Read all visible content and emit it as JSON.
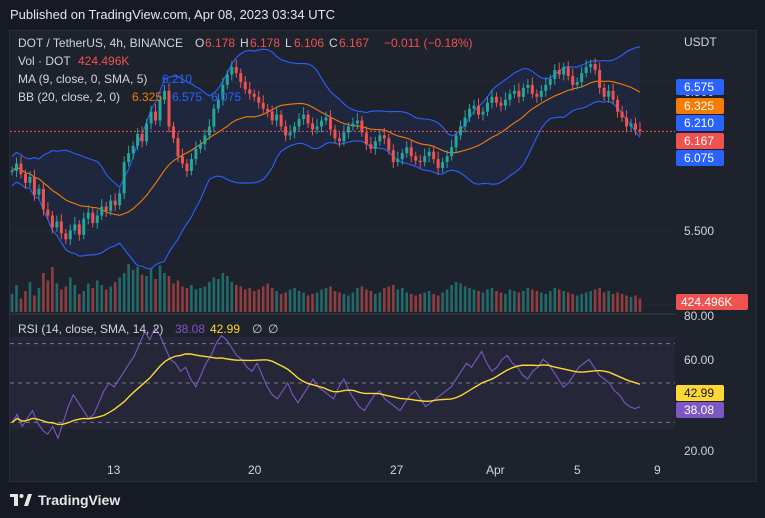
{
  "header": {
    "published": "Published on TradingView.com, Apr 08, 2023 03:34 UTC"
  },
  "legend": {
    "symbol": "DOT / TetherUS, 4h, BINANCE",
    "o_label": "O",
    "o_val": "6.178",
    "h_label": "H",
    "h_val": "6.178",
    "l_label": "L",
    "l_val": "6.106",
    "c_label": "C",
    "c_val": "6.167",
    "change": "−0.011 (−0.18%)",
    "vol_label": "Vol · DOT",
    "vol_val": "424.496K",
    "ma_label": "MA (9, close, 0, SMA, 5)",
    "ma_val": "6.210",
    "bb_label": "BB (20, close, 2, 0)",
    "bb_basis": "6.325",
    "bb_upper": "6.575",
    "bb_lower": "6.075",
    "rsi_label": "RSI (14, close, SMA, 14, 2)",
    "rsi_val": "38.08",
    "rsi_ma_val": "42.99",
    "null_1": "∅",
    "null_2": "∅"
  },
  "price_axis": {
    "currency": "USDT",
    "tick_partial_top": "6.500",
    "tick_mid": "5.500",
    "tick_partial_bottom": "5.000",
    "tag_upper": "6.575",
    "tag_basis": "6.325",
    "tag_ma": "6.210",
    "tag_close": "6.167",
    "tag_lower": "6.075",
    "tag_volume": "424.496K"
  },
  "rsi_axis": {
    "ticks": [
      "80.00",
      "60.00",
      "20.00"
    ],
    "tag_ma": "42.99",
    "tag_rsi": "38.08"
  },
  "time_axis": {
    "labels": [
      "13",
      "20",
      "27",
      "Apr",
      "5",
      "9"
    ]
  },
  "footer": {
    "brand": "TradingView"
  },
  "colors": {
    "up": "#26a69a",
    "down": "#ef5350",
    "bb_band": "#2962ff",
    "bb_basis": "#f57c00",
    "rsi": "#7e57c2",
    "rsi_ma": "#fdd835",
    "close_line": "#ef5350"
  },
  "chart_data": {
    "type": "candlestick",
    "symbol": "DOT/USDT",
    "timeframe": "4h",
    "last_close": 6.167,
    "ohlc_last": {
      "open": 6.178,
      "high": 6.178,
      "low": 6.106,
      "close": 6.167
    },
    "x_labels": [
      "13",
      "20",
      "27",
      "Apr",
      "5",
      "9"
    ],
    "close_series": [
      5.9,
      5.95,
      5.88,
      5.82,
      5.86,
      5.74,
      5.78,
      5.64,
      5.6,
      5.52,
      5.56,
      5.48,
      5.44,
      5.5,
      5.54,
      5.47,
      5.58,
      5.62,
      5.55,
      5.6,
      5.66,
      5.63,
      5.7,
      5.67,
      5.75,
      5.96,
      6.02,
      6.07,
      6.15,
      6.1,
      6.22,
      6.3,
      6.24,
      6.38,
      6.44,
      6.2,
      6.12,
      6.0,
      5.95,
      5.9,
      5.98,
      6.05,
      6.08,
      6.14,
      6.2,
      6.32,
      6.38,
      6.48,
      6.55,
      6.6,
      6.56,
      6.5,
      6.45,
      6.42,
      6.4,
      6.36,
      6.32,
      6.3,
      6.24,
      6.28,
      6.2,
      6.14,
      6.16,
      6.2,
      6.25,
      6.28,
      6.22,
      6.18,
      6.2,
      6.24,
      6.26,
      6.18,
      6.12,
      6.1,
      6.16,
      6.2,
      6.22,
      6.24,
      6.16,
      6.08,
      6.05,
      6.1,
      6.14,
      6.12,
      6.04,
      5.96,
      5.98,
      6.02,
      6.06,
      6.0,
      5.97,
      5.96,
      6.0,
      6.03,
      5.98,
      5.92,
      5.96,
      6.0,
      6.06,
      6.14,
      6.2,
      6.26,
      6.32,
      6.34,
      6.28,
      6.3,
      6.36,
      6.4,
      6.36,
      6.34,
      6.38,
      6.42,
      6.44,
      6.4,
      6.46,
      6.48,
      6.42,
      6.4,
      6.44,
      6.48,
      6.52,
      6.58,
      6.55,
      6.6,
      6.54,
      6.48,
      6.5,
      6.56,
      6.6,
      6.62,
      6.58,
      6.46,
      6.4,
      6.44,
      6.38,
      6.3,
      6.26,
      6.2,
      6.22,
      6.18,
      6.17
    ],
    "volume_series": [
      120,
      180,
      90,
      140,
      200,
      110,
      160,
      260,
      210,
      300,
      190,
      150,
      170,
      230,
      180,
      120,
      140,
      190,
      160,
      210,
      180,
      150,
      170,
      200,
      230,
      260,
      320,
      280,
      300,
      250,
      240,
      290,
      220,
      310,
      260,
      240,
      190,
      210,
      170,
      160,
      180,
      150,
      160,
      170,
      200,
      230,
      220,
      260,
      240,
      200,
      180,
      170,
      150,
      160,
      140,
      150,
      170,
      190,
      160,
      140,
      120,
      130,
      150,
      160,
      140,
      130,
      110,
      120,
      130,
      150,
      160,
      170,
      140,
      130,
      120,
      110,
      130,
      160,
      170,
      150,
      140,
      120,
      130,
      160,
      170,
      180,
      150,
      160,
      130,
      120,
      110,
      120,
      130,
      140,
      120,
      110,
      130,
      150,
      180,
      200,
      190,
      170,
      160,
      150,
      140,
      130,
      150,
      160,
      140,
      130,
      120,
      150,
      140,
      130,
      140,
      160,
      150,
      140,
      130,
      120,
      140,
      160,
      150,
      140,
      130,
      120,
      110,
      120,
      130,
      140,
      150,
      160,
      130,
      140,
      120,
      130,
      120,
      110,
      100,
      110,
      90
    ],
    "rsi_series": [
      30,
      34,
      28,
      32,
      36,
      30,
      26,
      24,
      28,
      22,
      30,
      38,
      44,
      40,
      36,
      32,
      34,
      40,
      46,
      50,
      48,
      52,
      56,
      60,
      64,
      70,
      76,
      72,
      78,
      74,
      68,
      62,
      60,
      56,
      58,
      52,
      48,
      54,
      60,
      64,
      70,
      74,
      72,
      68,
      64,
      62,
      58,
      56,
      60,
      54,
      48,
      44,
      42,
      46,
      50,
      44,
      40,
      44,
      48,
      52,
      48,
      46,
      44,
      42,
      48,
      52,
      46,
      42,
      38,
      36,
      40,
      44,
      46,
      42,
      40,
      38,
      36,
      40,
      44,
      46,
      42,
      38,
      40,
      42,
      44,
      46,
      48,
      52,
      56,
      60,
      58,
      62,
      66,
      60,
      56,
      58,
      62,
      64,
      60,
      58,
      54,
      52,
      56,
      58,
      62,
      60,
      56,
      52,
      48,
      50,
      54,
      58,
      60,
      62,
      58,
      54,
      52,
      50,
      46,
      44,
      40,
      38,
      37,
      38
    ],
    "price_ticks_visible": [
      6.5,
      5.5,
      5.0
    ],
    "price_range": [
      4.95,
      6.85
    ],
    "rsi_range": [
      15,
      85
    ],
    "rsi_bands": [
      70,
      50,
      30
    ]
  }
}
